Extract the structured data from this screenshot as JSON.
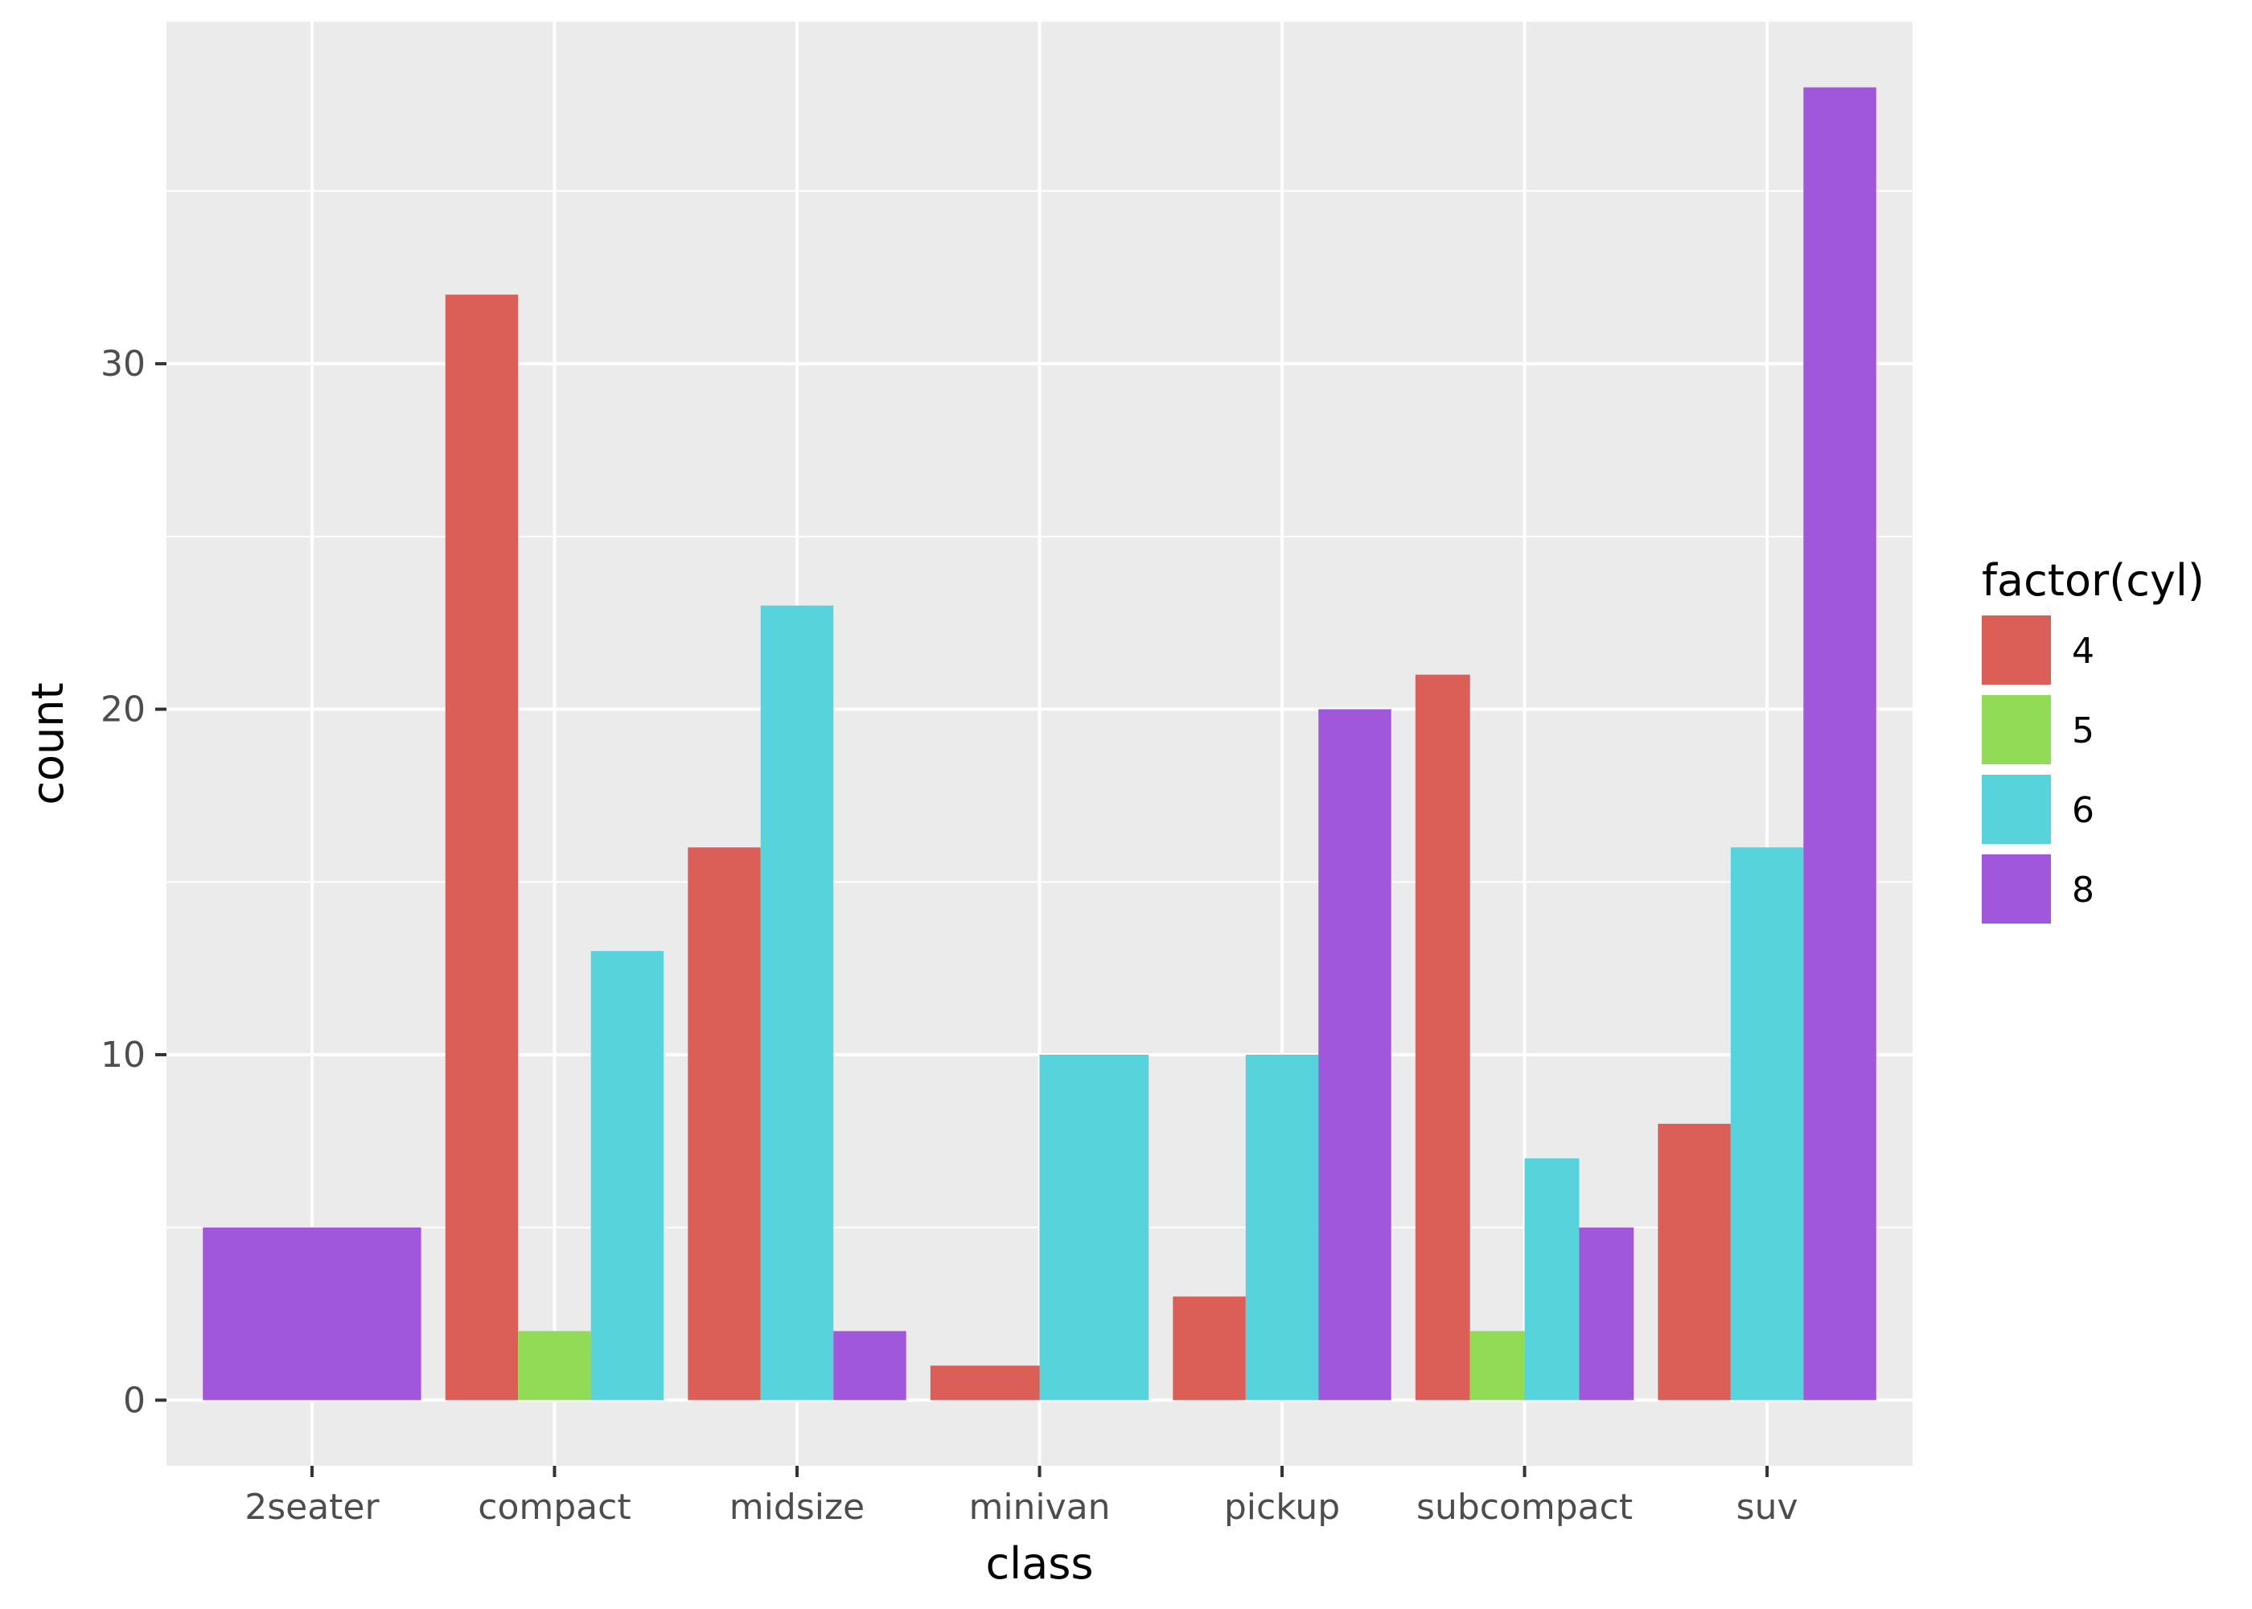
{
  "chart_data": {
    "type": "bar",
    "title": "",
    "xlabel": "class",
    "ylabel": "count",
    "categories": [
      "2seater",
      "compact",
      "midsize",
      "minivan",
      "pickup",
      "subcompact",
      "suv"
    ],
    "yticks": [
      0,
      10,
      20,
      30
    ],
    "ytick_labels": [
      "0",
      "10",
      "20",
      "30"
    ],
    "ylim": [
      -1.9,
      39.9
    ],
    "grid": true,
    "position": "dodge",
    "legend": {
      "title": "factor(cyl)",
      "position": "right"
    },
    "series": [
      {
        "name": "4",
        "color": "#DB5F57",
        "values": [
          0,
          32,
          16,
          1,
          3,
          21,
          8
        ]
      },
      {
        "name": "5",
        "color": "#91DB57",
        "values": [
          0,
          2,
          0,
          0,
          0,
          2,
          0
        ]
      },
      {
        "name": "6",
        "color": "#57D3DB",
        "values": [
          0,
          13,
          23,
          10,
          10,
          7,
          16
        ]
      },
      {
        "name": "8",
        "color": "#A157DB",
        "values": [
          5,
          0,
          2,
          0,
          20,
          5,
          38
        ]
      }
    ],
    "panel_background": "#EBEBEB",
    "grid_color": "#FFFFFF"
  }
}
